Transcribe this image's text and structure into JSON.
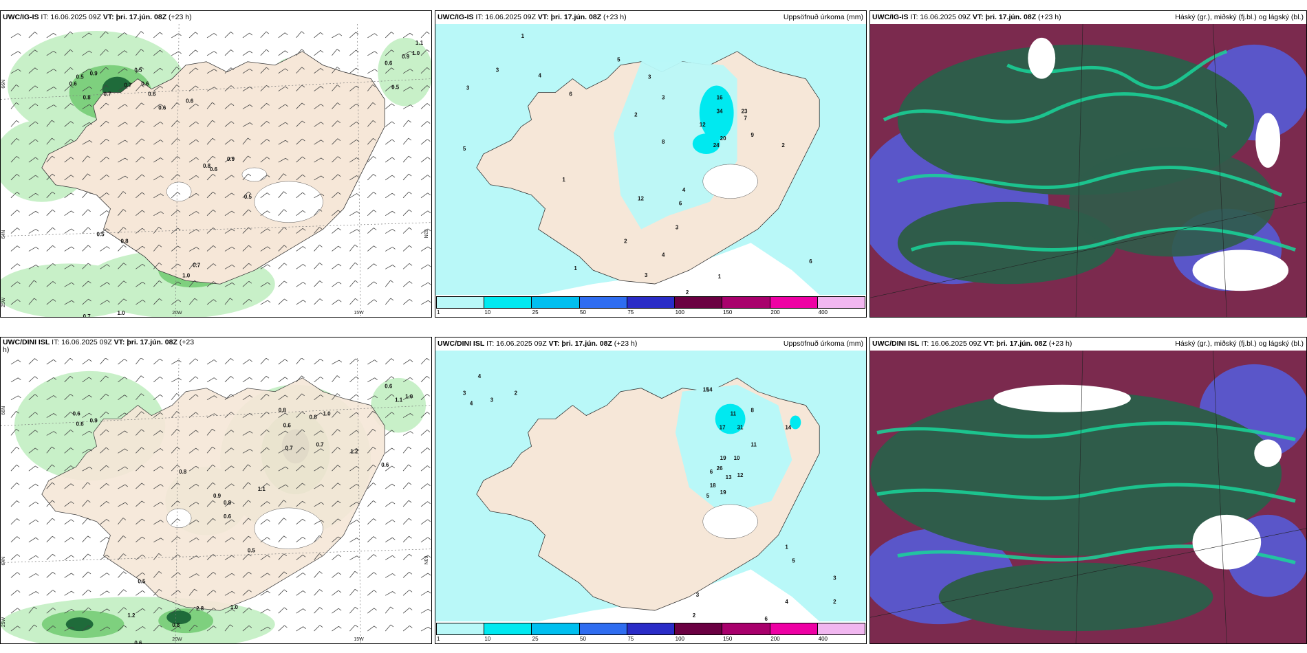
{
  "panels": [
    {
      "id": "top-left",
      "header": {
        "model": "UWC/IG-IS",
        "it": "IT: 16.06.2025 09Z",
        "vt_label": "VT:",
        "vt_value": "þri. 17.jún. 08Z",
        "lead": "(+23 h)",
        "right": ""
      },
      "axis_labels": {
        "lat_a": "66N",
        "lat_b": "64N",
        "lat_c": "63N",
        "lon_a": "25W",
        "lon_b": "20W",
        "lon_c": "15W"
      },
      "values": [
        "0.6",
        "0.5",
        "0.9",
        "0.8",
        "0.7",
        "0.5",
        "0.6",
        "0.6",
        "0.9",
        "0.6",
        "0.5",
        "1.1",
        "0.9",
        "0.6",
        "0.8",
        "1.0",
        "0.7",
        "0.5",
        "0.8",
        "0.5",
        "1.0",
        "0.6",
        "0.6",
        "0.7",
        "1.0",
        "0.7"
      ]
    },
    {
      "id": "top-middle",
      "header": {
        "model": "UWC/IG-IS",
        "it": "IT: 16.06.2025 09Z",
        "vt_label": "VT:",
        "vt_value": "þri. 17.jún. 08Z",
        "lead": "(+23 h)",
        "right": "Uppsöfnuð úrkoma (mm)"
      },
      "values": [
        "3",
        "5",
        "1",
        "3",
        "4",
        "6",
        "5",
        "2",
        "3",
        "3",
        "16",
        "34",
        "23",
        "12",
        "24",
        "20",
        "7",
        "9",
        "2",
        "1",
        "4",
        "3",
        "2",
        "12",
        "8",
        "6",
        "4",
        "1",
        "3",
        "2",
        "1",
        "6"
      ],
      "colorbar": {
        "ticks": [
          "1",
          "10",
          "25",
          "50",
          "75",
          "100",
          "150",
          "200",
          "400"
        ],
        "colors": [
          "#b9f8f8",
          "#00e9f0",
          "#00bfef",
          "#2f6df0",
          "#2a2cc7",
          "#6a0042",
          "#a8006c",
          "#ee00a4",
          "#f1b7f0"
        ]
      }
    },
    {
      "id": "top-right",
      "header": {
        "model": "UWC/IG-IS",
        "it": "IT: 16.06.2025 09Z",
        "vt_label": "VT:",
        "vt_value": "þri. 17.jún. 08Z",
        "lead": "(+23 h)",
        "right": "Háský (gr.), miðský (fj.bl.) og lágský (bl.)"
      }
    },
    {
      "id": "bottom-left",
      "header": {
        "model": "UWC/DINI ISL",
        "it": "IT: 16.06.2025 09Z",
        "vt_label": "VT:",
        "vt_value": "þri. 17.jún. 08Z",
        "lead": "(+23",
        "wrap": "h)",
        "right": ""
      },
      "axis_labels": {
        "lat_a": "66N",
        "lat_b": "64N",
        "lat_c": "63N",
        "lon_a": "25W",
        "lon_b": "20W",
        "lon_c": "15W"
      },
      "values": [
        "0.6",
        "0.9",
        "0.8",
        "0.6",
        "0.8",
        "1.0",
        "0.6",
        "0.8",
        "0.7",
        "1.2",
        "0.6",
        "0.9",
        "0.8",
        "1.1",
        "0.6",
        "0.5",
        "2.8",
        "1.0",
        "1.2",
        "0.6",
        "1.1",
        "1.0",
        "0.6",
        "0.8",
        "0.7",
        "0.5"
      ]
    },
    {
      "id": "bottom-middle",
      "header": {
        "model": "UWC/DINI ISL",
        "it": "IT: 16.06.2025 09Z",
        "vt_label": "VT:",
        "vt_value": "þri. 17.jún. 08Z",
        "lead": "(+23 h)",
        "right": "Uppsöfnuð úrkoma (mm)"
      },
      "values": [
        "4",
        "3",
        "2",
        "3",
        "4",
        "15",
        "14",
        "11",
        "17",
        "31",
        "8",
        "14",
        "19",
        "26",
        "18",
        "13",
        "12",
        "19",
        "10",
        "11",
        "6",
        "5",
        "3",
        "2",
        "4",
        "1",
        "5",
        "6",
        "3",
        "2"
      ],
      "colorbar": {
        "ticks": [
          "1",
          "10",
          "25",
          "50",
          "75",
          "100",
          "150",
          "200",
          "400"
        ],
        "colors": [
          "#b9f8f8",
          "#00e9f0",
          "#00bfef",
          "#2f6df0",
          "#2a2cc7",
          "#6a0042",
          "#a8006c",
          "#ee00a4",
          "#f1b7f0"
        ]
      }
    },
    {
      "id": "bottom-right",
      "header": {
        "model": "UWC/DINI ISL",
        "it": "IT: 16.06.2025 09Z",
        "vt_label": "VT:",
        "vt_value": "þri. 17.jún. 08Z",
        "lead": "(+23 h)",
        "right": "Háský (gr.), miðský (fj.bl.) og lágský (bl.)"
      }
    }
  ],
  "colors": {
    "land": "#f6e7d8",
    "precip_light": "#c8f0c8",
    "precip_mid": "#7ed07e",
    "precip_dark": "#1f6b3a",
    "accum_sea": "#b9f8f8",
    "cloud_high": "#2f5c4a",
    "cloud_mid": "#7b2a4e",
    "cloud_low": "#5a56c9",
    "cloud_bright": "#19d69a"
  }
}
